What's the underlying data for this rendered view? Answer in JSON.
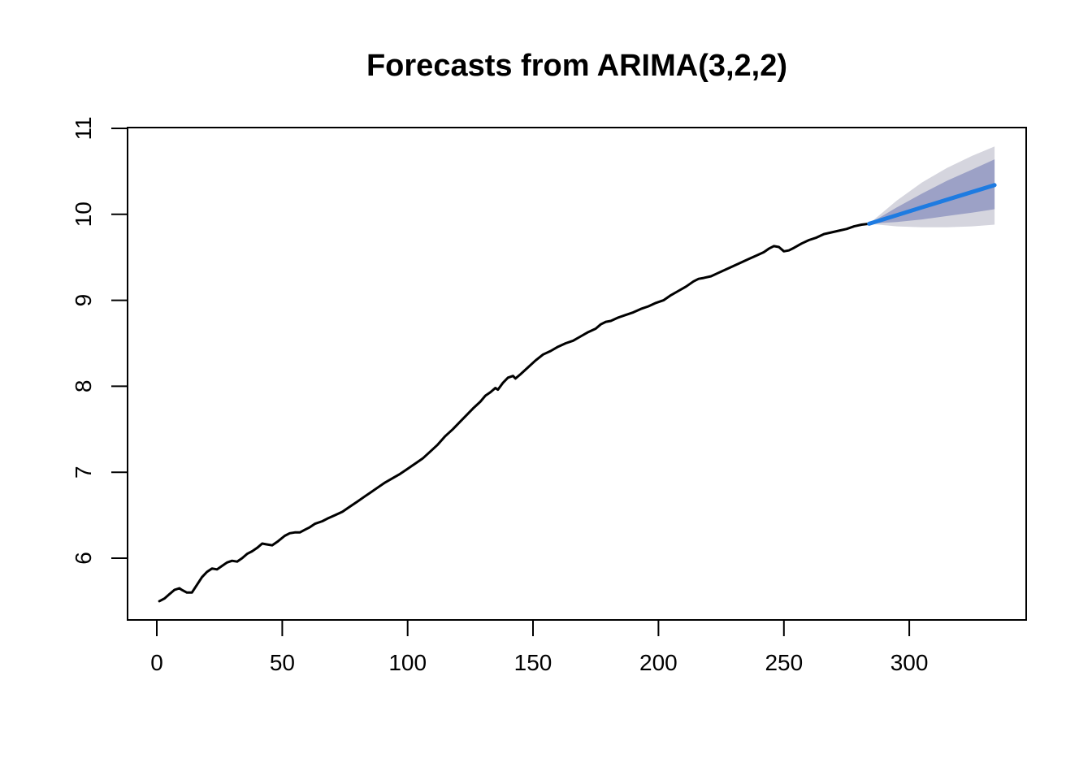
{
  "chart_data": {
    "type": "line",
    "title": "Forecasts from ARIMA(3,2,2)",
    "xlabel": "",
    "ylabel": "",
    "x_ticks": [
      0,
      50,
      100,
      150,
      200,
      250,
      300
    ],
    "y_ticks": [
      6,
      7,
      8,
      9,
      10,
      11
    ],
    "xlim": [
      -12,
      347
    ],
    "ylim": [
      5.27,
      11.01
    ],
    "grid": false,
    "legend_position": "none",
    "background_color": "#ffffff",
    "axis_color": "#000000",
    "series": [
      {
        "name": "observed",
        "color": "#000000",
        "line_width": 3,
        "t": [
          1,
          3,
          5,
          7,
          9,
          10,
          12,
          14,
          16,
          18,
          20,
          22,
          24,
          26,
          28,
          30,
          32,
          34,
          36,
          38,
          40,
          42,
          44,
          46,
          48,
          51,
          53,
          55,
          57,
          59,
          61,
          63,
          66,
          68,
          71,
          74,
          77,
          80,
          83,
          85,
          88,
          91,
          94,
          97,
          100,
          103,
          106,
          109,
          112,
          115,
          118,
          121,
          124,
          126,
          129,
          131,
          133,
          135,
          136,
          138,
          140,
          142,
          143,
          145,
          148,
          151,
          154,
          157,
          160,
          163,
          166,
          169,
          172,
          175,
          177,
          179,
          181,
          184,
          187,
          190,
          193,
          196,
          199,
          202,
          205,
          208,
          211,
          214,
          216,
          218,
          221,
          224,
          227,
          230,
          233,
          236,
          239,
          242,
          244,
          246,
          248,
          250,
          252,
          254,
          257,
          260,
          263,
          266,
          269,
          272,
          275,
          278,
          281,
          284
        ],
        "values": [
          5.5,
          5.53,
          5.58,
          5.63,
          5.65,
          5.63,
          5.6,
          5.6,
          5.69,
          5.78,
          5.84,
          5.88,
          5.87,
          5.91,
          5.95,
          5.97,
          5.96,
          6.0,
          6.05,
          6.08,
          6.12,
          6.17,
          6.16,
          6.15,
          6.19,
          6.26,
          6.29,
          6.3,
          6.3,
          6.33,
          6.36,
          6.4,
          6.43,
          6.46,
          6.5,
          6.54,
          6.6,
          6.66,
          6.72,
          6.76,
          6.82,
          6.88,
          6.93,
          6.98,
          7.04,
          7.1,
          7.16,
          7.24,
          7.32,
          7.42,
          7.5,
          7.59,
          7.68,
          7.74,
          7.82,
          7.89,
          7.93,
          7.98,
          7.96,
          8.04,
          8.1,
          8.12,
          8.09,
          8.14,
          8.22,
          8.3,
          8.37,
          8.41,
          8.46,
          8.5,
          8.53,
          8.58,
          8.63,
          8.67,
          8.72,
          8.75,
          8.76,
          8.8,
          8.83,
          8.86,
          8.9,
          8.93,
          8.97,
          9.0,
          9.06,
          9.11,
          9.16,
          9.22,
          9.25,
          9.26,
          9.28,
          9.32,
          9.36,
          9.4,
          9.44,
          9.48,
          9.52,
          9.56,
          9.6,
          9.63,
          9.62,
          9.57,
          9.58,
          9.61,
          9.66,
          9.7,
          9.73,
          9.77,
          9.79,
          9.81,
          9.83,
          9.86,
          9.88,
          9.89
        ]
      },
      {
        "name": "forecast-mean",
        "color": "#1E7BE1",
        "line_width": 5,
        "t": [
          284,
          295,
          305,
          315,
          325,
          334
        ],
        "values": [
          9.89,
          9.99,
          10.08,
          10.17,
          10.26,
          10.34
        ]
      }
    ],
    "bands": [
      {
        "name": "95-percent-interval",
        "color": "#D5D5DE",
        "t": [
          284,
          295,
          305,
          315,
          325,
          334
        ],
        "upper": [
          9.89,
          10.16,
          10.37,
          10.54,
          10.68,
          10.79
        ],
        "lower": [
          9.89,
          9.86,
          9.85,
          9.85,
          9.86,
          9.88
        ]
      },
      {
        "name": "80-percent-interval",
        "color": "#9CA1C6",
        "t": [
          284,
          295,
          305,
          315,
          325,
          334
        ],
        "upper": [
          9.89,
          10.08,
          10.24,
          10.39,
          10.52,
          10.64
        ],
        "lower": [
          9.89,
          9.91,
          9.94,
          9.98,
          10.02,
          10.06
        ]
      }
    ]
  }
}
